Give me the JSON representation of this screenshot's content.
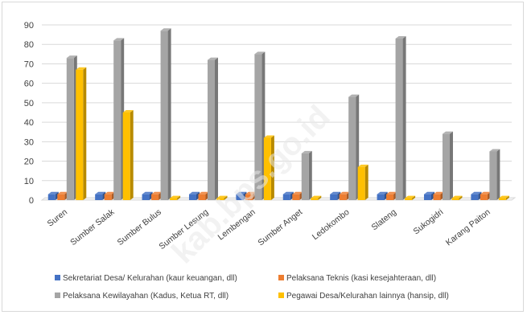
{
  "watermark": "kab.bps.go.id",
  "chart_data": {
    "type": "bar",
    "title": "",
    "xlabel": "",
    "ylabel": "",
    "ylim": [
      0,
      90
    ],
    "yticks": [
      0,
      10,
      20,
      30,
      40,
      50,
      60,
      70,
      80,
      90
    ],
    "grid": true,
    "legend_position": "bottom",
    "categories": [
      "Suren",
      "Sumber Salak",
      "Sumber Bulus",
      "Sumber Lesung",
      "Lembengan",
      "Sumber Anget",
      "Ledokombo",
      "Slateng",
      "Sukogidri",
      "Karang Paiton"
    ],
    "series": [
      {
        "name": "Sekretariat Desa/ Kelurahan (kaur keuangan, dll)",
        "color": "#4472c4",
        "values": [
          3,
          3,
          3,
          3,
          3,
          3,
          3,
          3,
          3,
          3
        ]
      },
      {
        "name": "Pelaksana Teknis (kasi kesejahteraan, dll)",
        "color": "#ed7d31",
        "values": [
          3,
          3,
          3,
          3,
          3,
          3,
          3,
          3,
          3,
          3
        ]
      },
      {
        "name": "Pelaksana Kewilayahan (Kadus, Ketua RT, dll)",
        "color": "#a5a5a5",
        "values": [
          73,
          82,
          87,
          72,
          75,
          24,
          53,
          83,
          34,
          25
        ]
      },
      {
        "name": "Pegawai Desa/Kelurahan lainnya (hansip, dll)",
        "color": "#ffc000",
        "values": [
          67,
          45,
          1,
          1,
          32,
          1,
          17,
          1,
          1,
          1
        ]
      }
    ]
  }
}
